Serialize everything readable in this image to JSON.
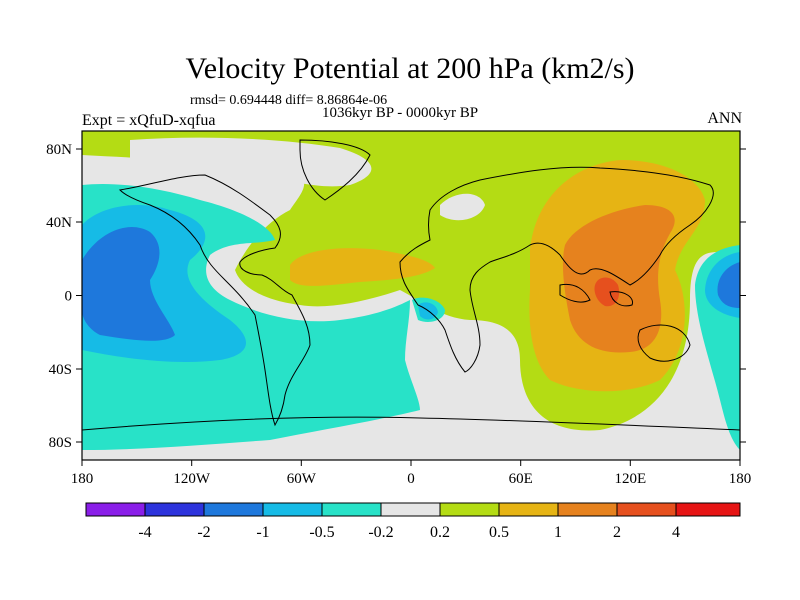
{
  "title": "Velocity Potential at 200 hPa (km2/s)",
  "stats": "rmsd= 0.694448 diff= 8.86864e-06",
  "period": "1036kyr BP - 0000kyr BP",
  "experiment": "Expt = xQfuD-xqfua",
  "season": "ANN",
  "axes": {
    "x_ticks": [
      "180",
      "120W",
      "60W",
      "0",
      "60E",
      "120E",
      "180"
    ],
    "y_ticks": [
      "80N",
      "40N",
      "0",
      "40S",
      "80S"
    ]
  },
  "colorbar": {
    "labels": [
      "-4",
      "-2",
      "-1",
      "-0.5",
      "-0.2",
      "0.2",
      "0.5",
      "1",
      "2",
      "4"
    ],
    "colors": [
      "#8a1ee8",
      "#2d33dc",
      "#1e78dc",
      "#16bbe6",
      "#28e2c8",
      "#e6e6e6",
      "#b4dc14",
      "#e6b414",
      "#e6821e",
      "#e6501e",
      "#e61414"
    ]
  },
  "palette": {
    "neutral": "#e6e6e6",
    "pos_weak": "#b4dc14",
    "pos_mid": "#e6b414",
    "pos_strong": "#e6821e",
    "pos_max": "#e6501e",
    "neg_weak": "#28e2c8",
    "neg_mid": "#16bbe6",
    "neg_strong": "#1e78dc"
  }
}
